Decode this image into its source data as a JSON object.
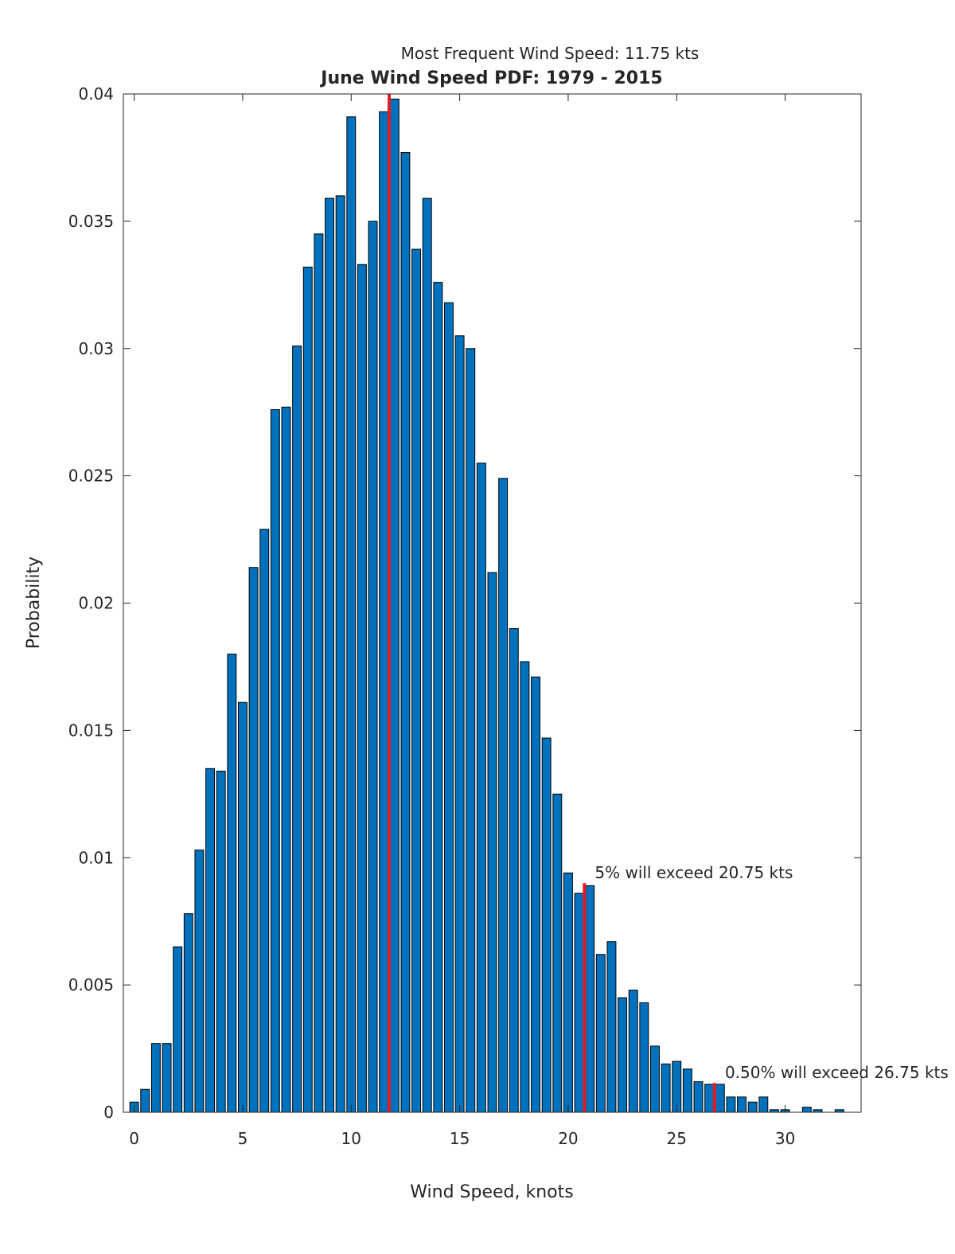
{
  "chart_data": {
    "type": "bar",
    "title": "June Wind Speed PDF: 1979 - 2015",
    "subtitle": "Most Frequent Wind Speed: 11.75 kts",
    "xlabel": "Wind Speed, knots",
    "ylabel": "Probability",
    "xlim": [
      -0.5,
      33.5
    ],
    "ylim": [
      0,
      0.04
    ],
    "xticks": [
      0,
      5,
      10,
      15,
      20,
      25,
      30
    ],
    "xtick_labels": [
      "0",
      "5",
      "10",
      "15",
      "20",
      "25",
      "30"
    ],
    "yticks": [
      0,
      0.005,
      0.01,
      0.015,
      0.02,
      0.025,
      0.03,
      0.035,
      0.04
    ],
    "ytick_labels": [
      "0",
      "0.005",
      "0.01",
      "0.015",
      "0.02",
      "0.025",
      "0.03",
      "0.035",
      "0.04"
    ],
    "grid": false,
    "bar_color": "#0072BD",
    "marker_color": "#e6191f",
    "x": [
      0,
      0.5,
      1,
      1.5,
      2,
      2.5,
      3,
      3.5,
      4,
      4.5,
      5,
      5.5,
      6,
      6.5,
      7,
      7.5,
      8,
      8.5,
      9,
      9.5,
      10,
      10.5,
      11,
      11.5,
      12,
      12.5,
      13,
      13.5,
      14,
      14.5,
      15,
      15.5,
      16,
      16.5,
      17,
      17.5,
      18,
      18.5,
      19,
      19.5,
      20,
      20.5,
      21,
      21.5,
      22,
      22.5,
      23,
      23.5,
      24,
      24.5,
      25,
      25.5,
      26,
      26.5,
      27,
      27.5,
      28,
      28.5,
      29,
      29.5,
      30,
      30.5,
      31,
      31.5,
      32,
      32.5
    ],
    "values": [
      0.0004,
      0.0009,
      0.0027,
      0.0027,
      0.0065,
      0.0078,
      0.0103,
      0.0135,
      0.0134,
      0.018,
      0.0161,
      0.0214,
      0.0229,
      0.0276,
      0.0277,
      0.0301,
      0.0332,
      0.0345,
      0.0359,
      0.036,
      0.0391,
      0.0333,
      0.035,
      0.0393,
      0.0398,
      0.0377,
      0.0339,
      0.0359,
      0.0326,
      0.0318,
      0.0305,
      0.03,
      0.0255,
      0.0212,
      0.0249,
      0.019,
      0.0177,
      0.0171,
      0.0147,
      0.0125,
      0.0094,
      0.0086,
      0.0089,
      0.0062,
      0.0067,
      0.0045,
      0.0048,
      0.0043,
      0.0026,
      0.0019,
      0.002,
      0.0017,
      0.0012,
      0.0011,
      0.0011,
      0.0006,
      0.0006,
      0.0004,
      0.0006,
      0.0001,
      0.0001,
      0,
      0.0002,
      0.0001,
      0,
      0.0001
    ],
    "markers": [
      {
        "x": 11.75,
        "y": 0.04,
        "label": ""
      },
      {
        "x": 20.75,
        "y": 0.009,
        "label": "5% will exceed 20.75 kts"
      },
      {
        "x": 26.75,
        "y": 0.00115,
        "label": "0.50% will exceed 26.75 kts"
      }
    ]
  }
}
